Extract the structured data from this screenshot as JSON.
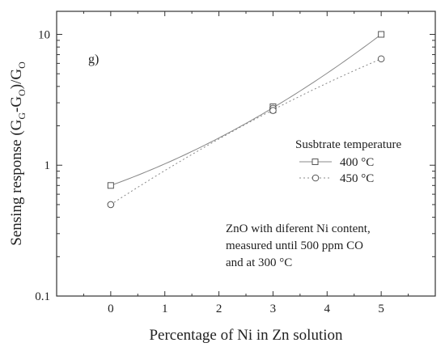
{
  "chart_data": {
    "type": "line",
    "panel_label": "g)",
    "xlabel": "Percentage of Ni in Zn solution",
    "ylabel": "Sensing response (G",
    "ylabel_sub1": "G",
    "ylabel_mid": "-G",
    "ylabel_sub2": "O",
    "ylabel_end": ")/G",
    "ylabel_sub3": "O",
    "xlim": [
      -1,
      6
    ],
    "ylim": [
      0.1,
      15
    ],
    "yscale": "log",
    "x_ticks": [
      0,
      1,
      2,
      3,
      4,
      5
    ],
    "x_tick_labels": [
      "0",
      "1",
      "2",
      "3",
      "4",
      "5"
    ],
    "y_ticks": [
      0.1,
      1,
      10
    ],
    "y_tick_labels": [
      "0.1",
      "1",
      "10"
    ],
    "legend_title": "Susbtrate temperature",
    "legend_position": "right",
    "grid": false,
    "series": [
      {
        "name": "400 °C",
        "marker": "square",
        "line_style": "solid",
        "color": "#888888",
        "x": [
          0,
          3,
          3,
          5
        ],
        "y": [
          0.7,
          2.8,
          2.65,
          10.0
        ],
        "fit_x": [
          0,
          3,
          5
        ],
        "fit_y": [
          0.7,
          2.75,
          10.0
        ]
      },
      {
        "name": "450 °C",
        "marker": "circle",
        "line_style": "dotted",
        "color": "#888888",
        "x": [
          0,
          3,
          3,
          5
        ],
        "y": [
          0.5,
          2.72,
          2.62,
          6.5
        ],
        "fit_x": [
          0,
          3,
          5
        ],
        "fit_y": [
          0.5,
          2.65,
          6.5
        ]
      }
    ],
    "annotation": [
      "ZnO with diferent Ni content,",
      "measured until 500 ppm CO",
      "and at 300 °C"
    ]
  }
}
